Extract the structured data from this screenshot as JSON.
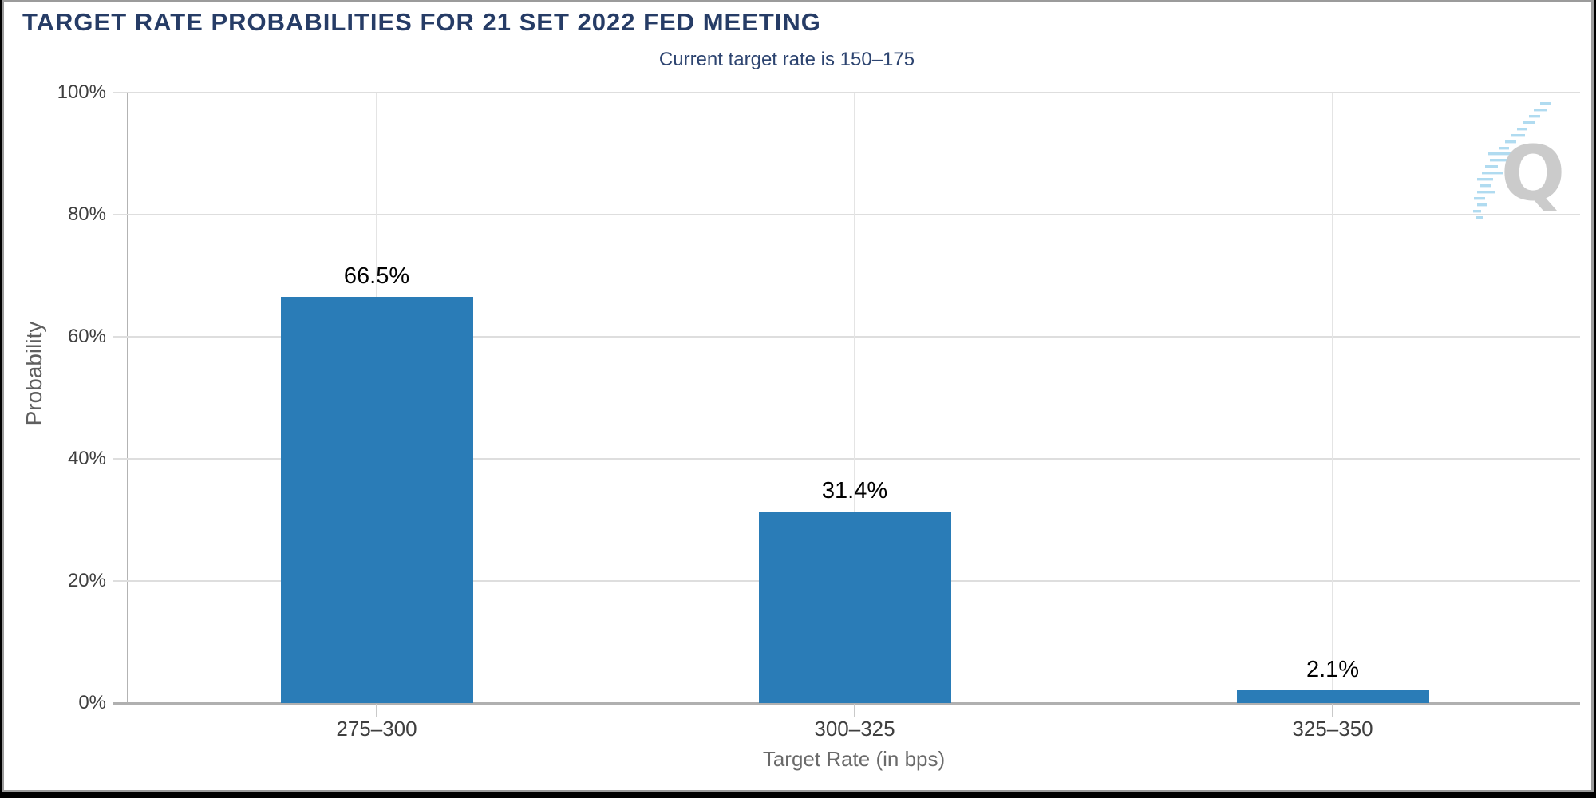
{
  "header": {
    "title": "TARGET RATE PROBABILITIES FOR 21 SET 2022 FED MEETING",
    "subtitle": "Current target rate is 150–175"
  },
  "watermark": {
    "letter": "Q"
  },
  "chart_data": {
    "type": "bar",
    "title": "TARGET RATE PROBABILITIES FOR 21 SET 2022 FED MEETING",
    "subtitle": "Current target rate is 150–175",
    "categories": [
      "275–300",
      "300–325",
      "325–350"
    ],
    "values": [
      66.5,
      31.4,
      2.1
    ],
    "value_labels": [
      "66.5%",
      "31.4%",
      "2.1%"
    ],
    "xlabel": "Target Rate (in bps)",
    "ylabel": "Probability",
    "ylim": [
      0,
      100
    ],
    "yticks": [
      0,
      20,
      40,
      60,
      80,
      100
    ],
    "ytick_labels": [
      "0%",
      "20%",
      "40%",
      "60%",
      "80%",
      "100%"
    ],
    "bar_color": "#2a7cb7",
    "grid": true,
    "legend": false
  },
  "colors": {
    "title": "#263c66",
    "subtitle": "#2d4470",
    "axis_line": "#b3b3b3",
    "gridline": "#dedede",
    "tick_label": "#3f3f3f",
    "axis_title": "#6a6a6a",
    "value_label": "#000000",
    "watermark_letter": "#cbcbcb",
    "watermark_streak": "#a8d8ef"
  }
}
